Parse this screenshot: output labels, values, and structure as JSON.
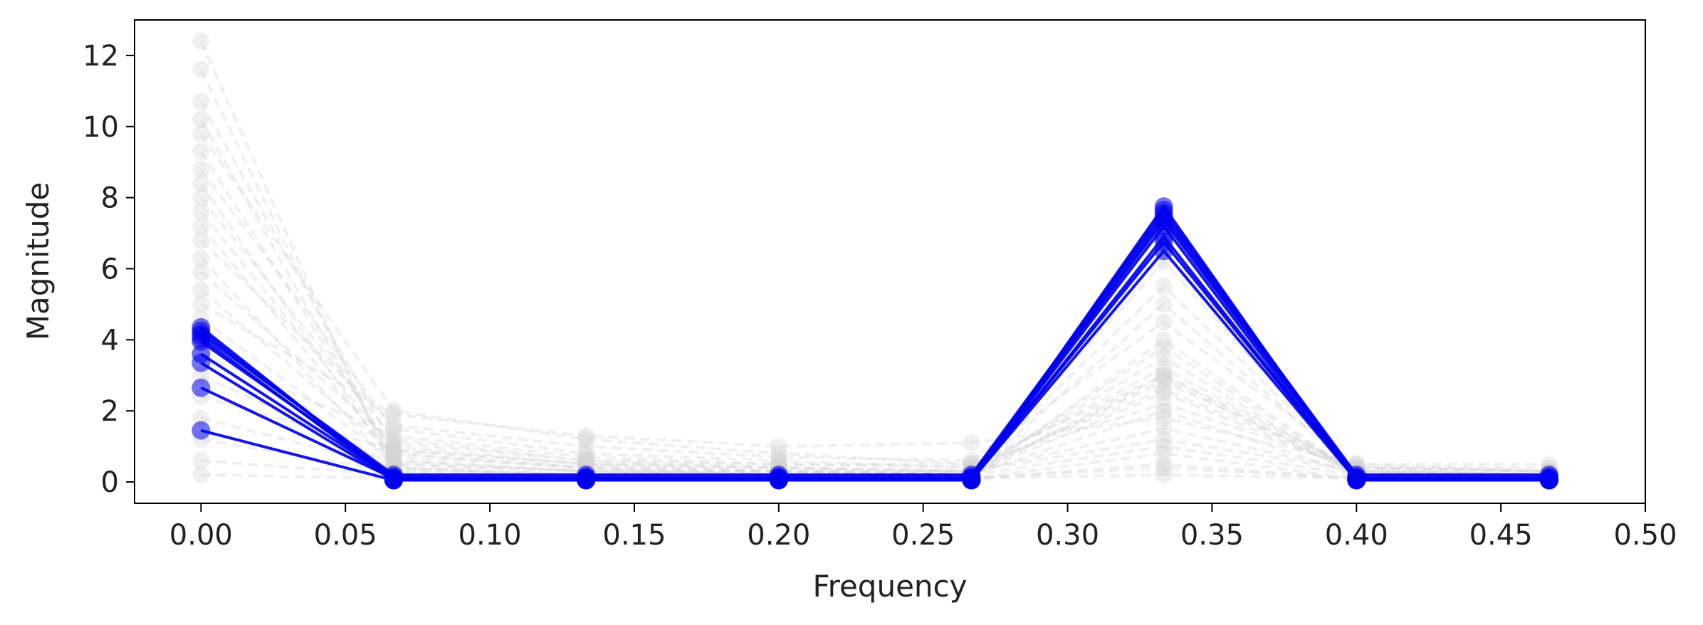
{
  "chart_data": {
    "type": "line",
    "title": "",
    "xlabel": "Frequency",
    "ylabel": "Magnitude",
    "xlim": [
      -0.023,
      0.5
    ],
    "ylim": [
      -0.6,
      13.0
    ],
    "xticks": [
      0.0,
      0.05,
      0.1,
      0.15,
      0.2,
      0.25,
      0.3,
      0.35,
      0.4,
      0.45,
      0.5
    ],
    "xtick_labels": [
      "0.00",
      "0.05",
      "0.10",
      "0.15",
      "0.20",
      "0.25",
      "0.30",
      "0.35",
      "0.40",
      "0.45",
      "0.50"
    ],
    "yticks": [
      0,
      2,
      4,
      6,
      8,
      10,
      12
    ],
    "ytick_labels": [
      "0",
      "2",
      "4",
      "6",
      "8",
      "10",
      "12"
    ],
    "grid": false,
    "legend": "none",
    "x": [
      0.0,
      0.0667,
      0.1333,
      0.2,
      0.2667,
      0.3333,
      0.4,
      0.4667
    ],
    "colors": {
      "highlight": "#0000ee",
      "background": "#d3d3d3"
    },
    "highlighted_series": [
      {
        "values": [
          4.35,
          0.05,
          0.05,
          0.05,
          0.05,
          7.75,
          0.05,
          0.05
        ]
      },
      {
        "values": [
          4.25,
          0.1,
          0.1,
          0.1,
          0.1,
          7.65,
          0.1,
          0.1
        ]
      },
      {
        "values": [
          4.15,
          0.2,
          0.2,
          0.2,
          0.2,
          7.55,
          0.2,
          0.2
        ]
      },
      {
        "values": [
          4.05,
          0.05,
          0.05,
          0.05,
          0.05,
          7.45,
          0.1,
          0.05
        ]
      },
      {
        "values": [
          3.95,
          0.15,
          0.15,
          0.15,
          0.15,
          7.35,
          0.15,
          0.15
        ]
      },
      {
        "values": [
          3.6,
          0.1,
          0.1,
          0.1,
          0.1,
          7.2,
          0.05,
          0.1
        ]
      },
      {
        "values": [
          3.35,
          0.05,
          0.05,
          0.05,
          0.05,
          6.9,
          0.05,
          0.05
        ]
      },
      {
        "values": [
          2.65,
          0.1,
          0.1,
          0.1,
          0.1,
          6.75,
          0.1,
          0.05
        ]
      },
      {
        "values": [
          1.45,
          0.05,
          0.05,
          0.05,
          0.05,
          6.5,
          0.05,
          0.05
        ]
      }
    ],
    "background_series": [
      {
        "values": [
          12.4,
          0.2,
          0.1,
          0.1,
          0.1,
          0.5,
          0.1,
          0.1
        ]
      },
      {
        "values": [
          11.6,
          0.4,
          0.2,
          0.2,
          0.2,
          1.0,
          0.2,
          0.2
        ]
      },
      {
        "values": [
          10.7,
          1.0,
          0.5,
          0.3,
          0.2,
          2.0,
          0.2,
          0.2
        ]
      },
      {
        "values": [
          10.2,
          0.6,
          0.3,
          0.3,
          0.3,
          1.5,
          0.3,
          0.3
        ]
      },
      {
        "values": [
          9.8,
          2.0,
          1.2,
          0.8,
          0.5,
          3.0,
          0.4,
          0.3
        ]
      },
      {
        "values": [
          9.3,
          0.8,
          0.4,
          0.2,
          0.2,
          2.5,
          0.3,
          0.2
        ]
      },
      {
        "values": [
          8.8,
          1.5,
          0.8,
          0.6,
          0.4,
          3.2,
          0.3,
          0.2
        ]
      },
      {
        "values": [
          8.4,
          0.5,
          0.3,
          0.2,
          0.1,
          4.0,
          0.2,
          0.2
        ]
      },
      {
        "values": [
          8.0,
          1.2,
          0.6,
          0.4,
          0.3,
          2.8,
          0.4,
          0.3
        ]
      },
      {
        "values": [
          7.6,
          0.9,
          0.5,
          0.4,
          0.3,
          5.5,
          0.3,
          0.2
        ]
      },
      {
        "values": [
          7.2,
          0.7,
          0.4,
          0.3,
          0.3,
          3.5,
          0.2,
          0.2
        ]
      },
      {
        "values": [
          6.8,
          1.6,
          1.0,
          0.7,
          0.6,
          4.5,
          0.5,
          0.3
        ]
      },
      {
        "values": [
          6.3,
          0.4,
          0.2,
          0.2,
          0.2,
          6.2,
          0.2,
          0.1
        ]
      },
      {
        "values": [
          5.9,
          1.1,
          0.6,
          0.5,
          0.5,
          2.2,
          0.4,
          0.4
        ]
      },
      {
        "values": [
          5.4,
          0.8,
          0.4,
          0.3,
          0.2,
          3.0,
          0.2,
          0.2
        ]
      },
      {
        "values": [
          5.0,
          1.9,
          1.3,
          1.0,
          1.1,
          1.8,
          0.5,
          0.5
        ]
      },
      {
        "values": [
          4.6,
          0.6,
          0.3,
          0.3,
          0.2,
          5.0,
          0.3,
          0.2
        ]
      },
      {
        "values": [
          4.2,
          0.3,
          0.2,
          0.2,
          0.1,
          6.6,
          0.1,
          0.1
        ]
      },
      {
        "values": [
          3.6,
          1.3,
          0.7,
          0.5,
          0.4,
          2.6,
          0.4,
          0.3
        ]
      },
      {
        "values": [
          3.0,
          0.5,
          0.3,
          0.2,
          0.2,
          3.8,
          0.2,
          0.2
        ]
      },
      {
        "values": [
          2.4,
          0.9,
          0.5,
          0.4,
          0.3,
          1.2,
          0.3,
          0.2
        ]
      },
      {
        "values": [
          1.8,
          0.4,
          0.2,
          0.2,
          0.2,
          2.9,
          0.2,
          0.1
        ]
      },
      {
        "values": [
          1.2,
          0.3,
          0.2,
          0.1,
          0.1,
          0.8,
          0.1,
          0.1
        ]
      },
      {
        "values": [
          0.6,
          0.2,
          0.1,
          0.1,
          0.1,
          0.4,
          0.1,
          0.1
        ]
      },
      {
        "values": [
          0.2,
          0.1,
          0.1,
          0.1,
          0.1,
          0.2,
          0.1,
          0.1
        ]
      }
    ]
  }
}
